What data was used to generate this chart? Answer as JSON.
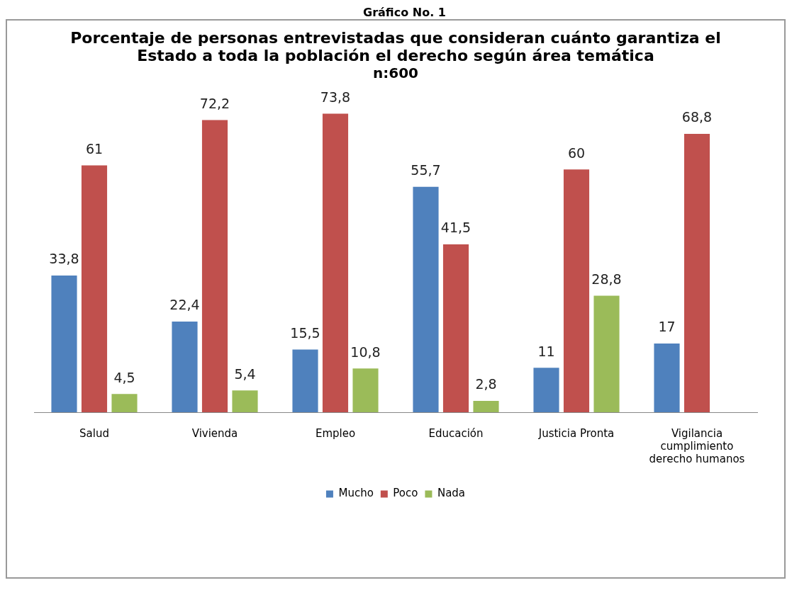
{
  "chart_data": {
    "type": "bar",
    "title": "Porcentaje de personas entrevistadas que consideran cuánto garantiza el Estado a toda la población el derecho  según área temática",
    "subtitle": "n:600",
    "annotations": [
      "Gráfico No. 1"
    ],
    "categories": [
      "Salud",
      "Vivienda",
      "Empleo",
      "Educación",
      "Justicia Pronta",
      "Vigilancia cumplimiento derecho humanos"
    ],
    "series": [
      {
        "name": "Mucho",
        "color": "#4f81bd",
        "values": [
          33.8,
          22.4,
          15.5,
          55.7,
          11,
          17
        ],
        "value_labels": [
          "33,8",
          "22,4",
          "15,5",
          "55,7",
          "11",
          "17"
        ]
      },
      {
        "name": "Poco",
        "color": "#c0504d",
        "values": [
          61,
          72.2,
          73.8,
          41.5,
          60,
          68.8
        ],
        "value_labels": [
          "61",
          "72,2",
          "73,8",
          "41,5",
          "60",
          "68,8"
        ]
      },
      {
        "name": "Nada",
        "color": "#9bbb59",
        "values": [
          4.5,
          5.4,
          10.8,
          2.8,
          28.8,
          null
        ],
        "value_labels": [
          "4,5",
          "5,4",
          "10,8",
          "2,8",
          "28,8",
          null
        ]
      }
    ],
    "legend": "bottom",
    "grid": false
  }
}
